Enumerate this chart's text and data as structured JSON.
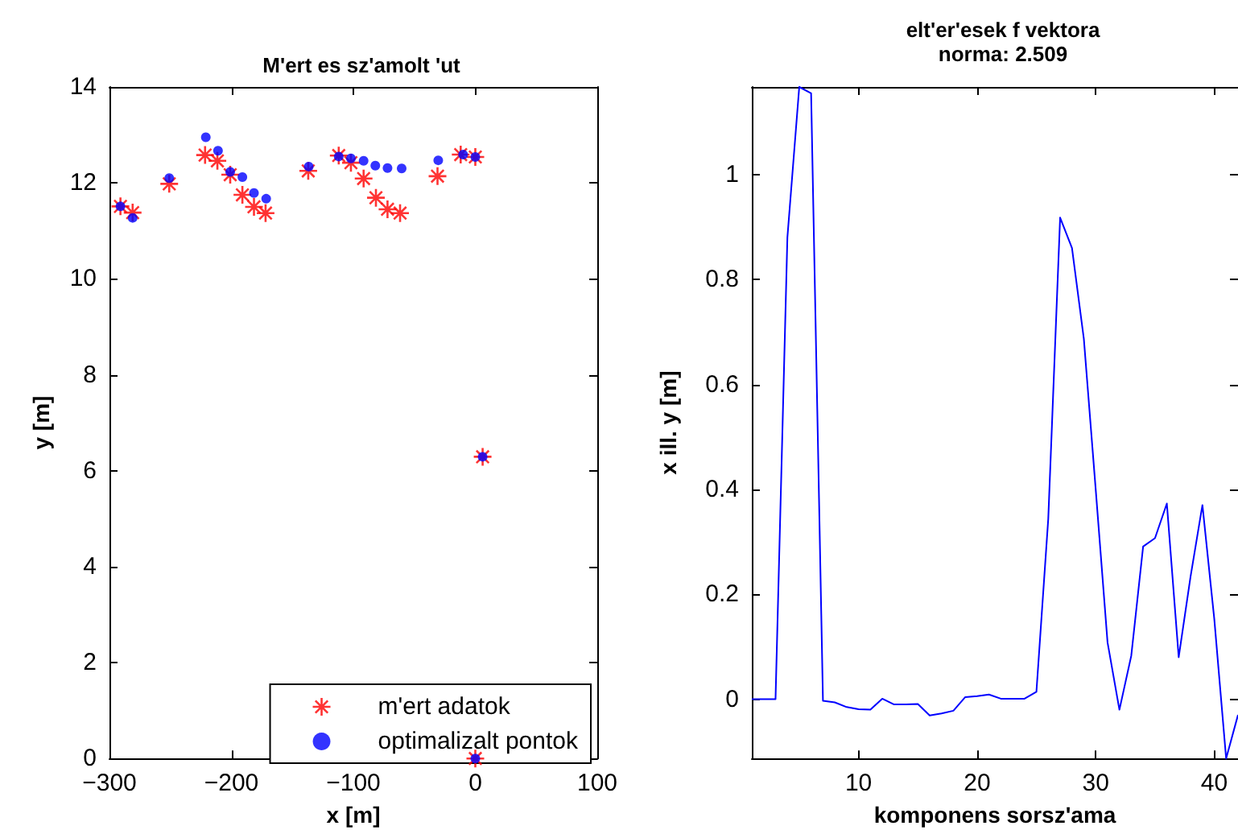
{
  "chart_data": [
    {
      "type": "scatter",
      "title": "M'ert es sz'amolt 'ut",
      "xlabel": "x [m]",
      "ylabel": "y [m]",
      "xlim": [
        -300,
        100
      ],
      "xticks": [
        -300,
        -200,
        -100,
        0,
        100
      ],
      "ylim": [
        0,
        14
      ],
      "yticks": [
        0,
        2,
        4,
        6,
        8,
        10,
        12,
        14
      ],
      "grid": false,
      "legend": "bottom right",
      "series": [
        {
          "name": "m'ert adatok",
          "color": "#ff0000",
          "marker": "cross",
          "x": [
            -291,
            -281,
            -251,
            -221.6,
            -211.5,
            -201,
            -191,
            -181.5,
            -172,
            -137,
            -112,
            -102,
            -91.6,
            -81.5,
            -72,
            -61.7,
            -31,
            -12,
            0,
            6,
            0
          ],
          "values": [
            11.51,
            11.38,
            11.98,
            12.58,
            12.46,
            12.17,
            11.75,
            11.5,
            11.37,
            12.25,
            12.57,
            12.42,
            12.09,
            11.69,
            11.45,
            11.37,
            12.14,
            12.59,
            12.54,
            6.29,
            0
          ]
        },
        {
          "name": "optimalizalt pontok",
          "color": "#0000ff",
          "marker": "circle",
          "x": [
            -291,
            -281,
            -251,
            -221,
            -211,
            -201,
            -191,
            -181.5,
            -171.5,
            -136.6,
            -112,
            -102,
            -91.6,
            -82,
            -72,
            -60.4,
            -30.4,
            -10,
            0,
            6,
            0
          ],
          "values": [
            11.51,
            11.27,
            12.1,
            12.95,
            12.67,
            12.23,
            12.12,
            11.79,
            11.67,
            12.34,
            12.55,
            12.51,
            12.46,
            12.36,
            12.31,
            12.3,
            12.47,
            12.59,
            12.54,
            6.29,
            0
          ]
        }
      ]
    },
    {
      "type": "line",
      "title": "elt'er'esek f vektora\nnorma: 2.509",
      "xlabel": "komponens sorsz'ama",
      "ylabel": "x ill. y [m]",
      "xlim": [
        1,
        42
      ],
      "xticks": [
        10,
        20,
        30,
        40
      ],
      "ylim": [
        -0.113,
        1.167
      ],
      "yticks": [
        0,
        0.2,
        0.4,
        0.6,
        0.8,
        1
      ],
      "grid": false,
      "marker": "none",
      "line_style": "solid",
      "x": [
        1,
        2,
        3,
        4,
        5,
        6,
        7,
        8,
        9,
        10,
        11,
        12,
        13,
        14,
        15,
        16,
        17,
        18,
        19,
        20,
        21,
        22,
        23,
        24,
        25,
        26,
        27,
        28,
        29,
        30,
        31,
        32,
        33,
        34,
        35,
        36,
        37,
        38,
        39,
        40,
        41,
        42
      ],
      "series": [
        {
          "color": "#0000ff",
          "values": [
            0,
            0,
            0,
            0.88,
            1.167,
            1.155,
            -0.003,
            -0.006,
            -0.015,
            -0.019,
            -0.02,
            0.001,
            -0.01,
            -0.01,
            -0.009,
            -0.031,
            -0.027,
            -0.022,
            0.004,
            0.006,
            0.009,
            0.001,
            0.001,
            0.001,
            0.014,
            0.344,
            0.918,
            0.86,
            0.687,
            0.4,
            0.108,
            -0.02,
            0.083,
            0.291,
            0.307,
            0.373,
            0.08,
            0.234,
            0.37,
            0.153,
            -0.113,
            -0.03
          ]
        }
      ]
    }
  ]
}
